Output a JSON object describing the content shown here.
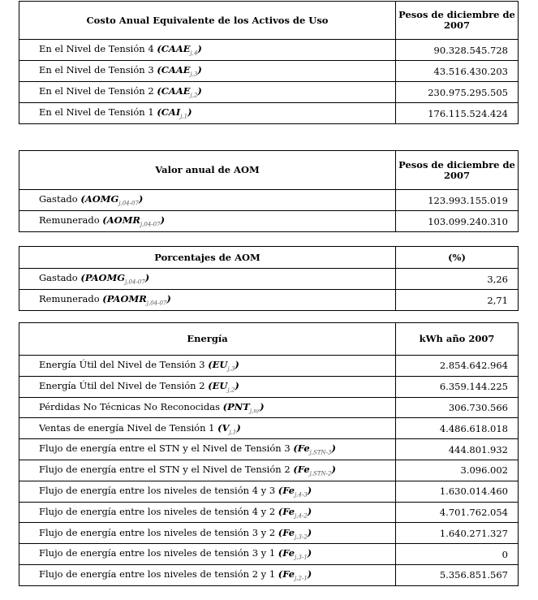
{
  "tables": [
    {
      "header": "Costo Anual Equivalente de los Activos de Uso",
      "unit": "Pesos de diciembre de 2007",
      "rows": [
        {
          "label": "En el Nivel de Tensión 4",
          "sym": "CAAE",
          "sub": "j,4",
          "value": "90.328.545.728"
        },
        {
          "label": "En el Nivel de Tensión 3",
          "sym": "CAAE",
          "sub": "j,3",
          "value": "43.516.430.203"
        },
        {
          "label": "En el Nivel de Tensión 2",
          "sym": "CAAE",
          "sub": "j,2",
          "value": "230.975.295.505"
        },
        {
          "label": "En el Nivel de Tensión 1",
          "sym": "CAI",
          "sub": "j,1",
          "value": "176.115.524.424"
        }
      ]
    },
    {
      "header": "Valor anual de AOM",
      "unit": "Pesos de diciembre de 2007",
      "rows": [
        {
          "label": "Gastado",
          "sym": "AOMG",
          "sub": "j,04-07",
          "value": "123.993.155.019"
        },
        {
          "label": "Remunerado",
          "sym": "AOMR",
          "sub": "j,04-07",
          "value": "103.099.240.310"
        }
      ]
    },
    {
      "header": "Porcentajes de AOM",
      "unit": "(%)",
      "rows": [
        {
          "label": "Gastado",
          "sym": "PAOMG",
          "sub": "j,04-07",
          "value": "3,26"
        },
        {
          "label": "Remunerado",
          "sym": "PAOMR",
          "sub": "j,04-07",
          "value": "2,71"
        }
      ]
    },
    {
      "header": "Energía",
      "unit": "kWh año 2007",
      "rows": [
        {
          "label": "Energía Útil del Nivel de Tensión 3",
          "sym": "EU",
          "sub": "j,3",
          "value": "2.854.642.964"
        },
        {
          "label": "Energía Útil del Nivel de Tensión 2",
          "sym": "EU",
          "sub": "j,2",
          "value": "6.359.144.225"
        },
        {
          "label": "Pérdidas No Técnicas No Reconocidas",
          "sym": "PNT",
          "sub": "j,nr",
          "value": "306.730.566"
        },
        {
          "label": "Ventas de energía Nivel de Tensión 1",
          "sym": "V",
          "sub": "j,1",
          "value": "4.486.618.018"
        },
        {
          "label": "Flujo de energía entre el STN y el Nivel de Tensión 3",
          "sym": "Fe",
          "sub": "j,STN-3",
          "value": "444.801.932"
        },
        {
          "label": "Flujo de energía entre el STN y el Nivel de Tensión 2",
          "sym": "Fe",
          "sub": "j,STN-2",
          "value": "3.096.002"
        },
        {
          "label": "Flujo de energía entre los niveles de tensión 4 y 3",
          "sym": "Fe",
          "sub": "j,4-3",
          "value": "1.630.014.460"
        },
        {
          "label": "Flujo de energía entre los niveles de tensión 4 y 2",
          "sym": "Fe",
          "sub": "j,4-2",
          "value": "4.701.762.054"
        },
        {
          "label": "Flujo de energía entre los niveles de tensión 3 y 2",
          "sym": "Fe",
          "sub": "j,3-2",
          "value": "1.640.271.327"
        },
        {
          "label": "Flujo de energía entre los niveles de tensión 3 y 1",
          "sym": "Fe",
          "sub": "j,3-1",
          "value": "0"
        },
        {
          "label": "Flujo de energía entre los niveles de tensión 2 y 1",
          "sym": "Fe",
          "sub": "j,2-1",
          "value": "5.356.851.567"
        }
      ]
    }
  ]
}
